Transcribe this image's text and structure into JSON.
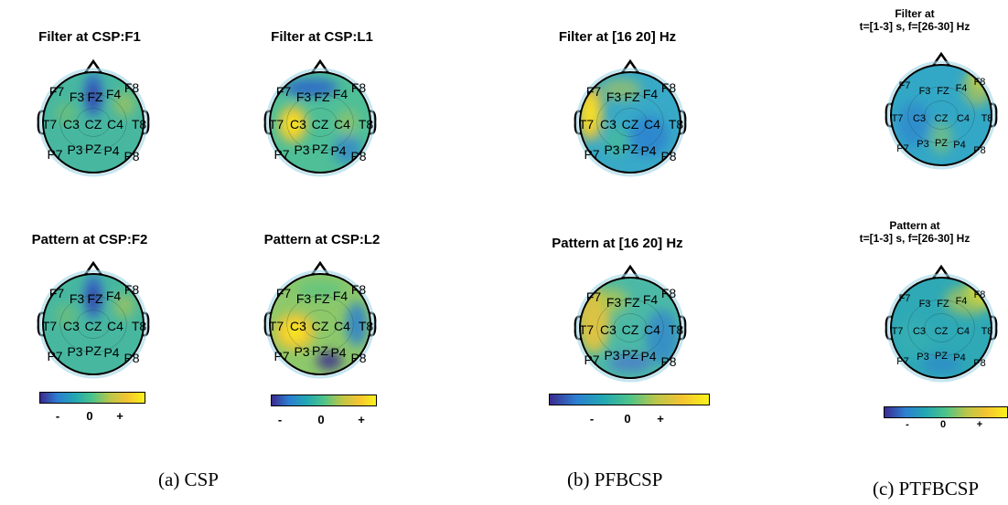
{
  "colors": {
    "background": "#ffffff",
    "colormap": [
      "#3b2a8f",
      "#2c7fd1",
      "#22a7b3",
      "#4cc38a",
      "#b9c64a",
      "#f4c431",
      "#f9f21a"
    ]
  },
  "topomaps": [
    {
      "id": "csp-filter-f1",
      "title": "Filter at CSP:F1",
      "labels": [
        "F7",
        "F3",
        "FZ",
        "F4",
        "F8",
        "T7",
        "C3",
        "CZ",
        "C4",
        "T8",
        "P7",
        "P3",
        "PZ",
        "P4",
        "P8"
      ]
    },
    {
      "id": "csp-filter-l1",
      "title": "Filter at CSP:L1",
      "labels": [
        "F7",
        "F3",
        "FZ",
        "F4",
        "F8",
        "T7",
        "C3",
        "CZ",
        "C4",
        "T8",
        "P7",
        "P3",
        "PZ",
        "P4",
        "P8"
      ]
    },
    {
      "id": "csp-pattern-f2",
      "title": "Pattern at CSP:F2",
      "labels": [
        "F7",
        "F3",
        "FZ",
        "F4",
        "F8",
        "T7",
        "C3",
        "CZ",
        "C4",
        "T8",
        "P7",
        "P3",
        "PZ",
        "P4",
        "P8"
      ]
    },
    {
      "id": "csp-pattern-l2",
      "title": "Pattern at CSP:L2",
      "labels": [
        "F7",
        "F3",
        "FZ",
        "F4",
        "F8",
        "T7",
        "C3",
        "CZ",
        "C4",
        "T8",
        "P7",
        "P3",
        "PZ",
        "P4",
        "P8"
      ]
    },
    {
      "id": "pfbcsp-filter",
      "title": "Filter at [16  20] Hz",
      "labels": [
        "F7",
        "F3",
        "FZ",
        "F4",
        "F8",
        "T7",
        "C3",
        "CZ",
        "C4",
        "T8",
        "P7",
        "P3",
        "PZ",
        "P4",
        "P8"
      ]
    },
    {
      "id": "pfbcsp-pattern",
      "title": "Pattern at [16  20] Hz",
      "labels": [
        "F7",
        "F3",
        "FZ",
        "F4",
        "F8",
        "T7",
        "C3",
        "CZ",
        "C4",
        "T8",
        "P7",
        "P3",
        "PZ",
        "P4",
        "P8"
      ]
    },
    {
      "id": "ptfbcsp-filter",
      "title_line1": "Filter at",
      "title_line2": "t=[1-3] s, f=[26-30] Hz",
      "labels": [
        "F7",
        "F3",
        "FZ",
        "F4",
        "F8",
        "T7",
        "C3",
        "CZ",
        "C4",
        "T8",
        "P7",
        "P3",
        "PZ",
        "P4",
        "P8"
      ]
    },
    {
      "id": "ptfbcsp-pattern",
      "title_line1": "Pattern at",
      "title_line2": "t=[1-3] s, f=[26-30] Hz",
      "labels": [
        "F7",
        "F3",
        "FZ",
        "F4",
        "F8",
        "T7",
        "C3",
        "CZ",
        "C4",
        "T8",
        "P7",
        "P3",
        "PZ",
        "P4",
        "P8"
      ]
    }
  ],
  "colorbar": {
    "minus": "-",
    "zero": "0",
    "plus": "+"
  },
  "captions": {
    "a": "(a) CSP",
    "b": "(b) PFBCSP",
    "c": "(c) PTFBCSP"
  }
}
